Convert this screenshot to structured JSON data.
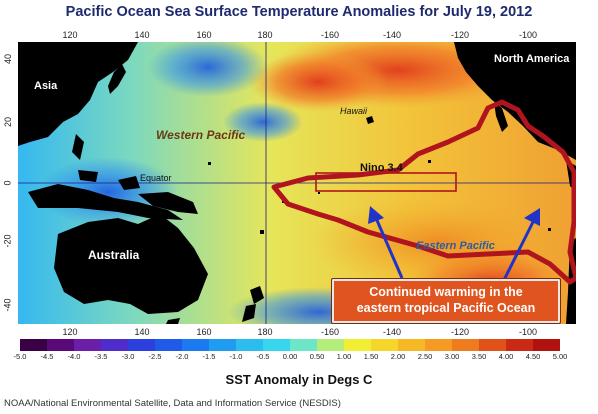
{
  "title": "Pacific Ocean Sea Surface Temperature Anomalies for July 19, 2012",
  "lon_ticks_top": [
    "120",
    "140",
    "160",
    "180",
    "-160",
    "-140",
    "-120",
    "-100"
  ],
  "lon_ticks_bottom": [
    "120",
    "140",
    "160",
    "180",
    "-160",
    "-140",
    "-120",
    "-100"
  ],
  "lat_ticks": [
    "40",
    "20",
    "0",
    "-20",
    "-40"
  ],
  "labels": {
    "asia": "Asia",
    "australia": "Australia",
    "north_america": "North America",
    "western_pacific": "Western Pacific",
    "eastern_pacific": "Eastern Pacific",
    "equator": "Equator",
    "hawaii": "Hawaii",
    "nino": "Nino 3.4"
  },
  "callout": {
    "line1": "Continued warming in the",
    "line2": "eastern tropical Pacific Ocean"
  },
  "colorbar": {
    "title": "SST Anomaly in Degs C",
    "ticks": [
      "-5.0",
      "-4.5",
      "-4.0",
      "-3.5",
      "-3.0",
      "-2.5",
      "-2.0",
      "-1.5",
      "-1.0",
      "-0.5",
      "0.00",
      "0.50",
      "1.00",
      "1.50",
      "2.00",
      "2.50",
      "3.00",
      "3.50",
      "4.00",
      "4.50",
      "5.00"
    ],
    "colors": [
      "#3a0046",
      "#5a0a78",
      "#6b1fa8",
      "#4f2ccc",
      "#2e3fe0",
      "#1f5ae8",
      "#1c7af0",
      "#1f9cf0",
      "#2bbcf0",
      "#38d6ee",
      "#6de6c8",
      "#b4ee7a",
      "#f2ee34",
      "#f6d62a",
      "#f7b826",
      "#f59a22",
      "#f07a1e",
      "#e0521a",
      "#cc2816",
      "#b0120f"
    ]
  },
  "source": "NOAA/National Environmental Satellite, Data and Information Service (NESDIS)",
  "colors": {
    "title": "#1e2a6e",
    "land": "#000000",
    "outline": "#b0141e",
    "arrow": "#2233c8",
    "callout_fill": "#e0541f",
    "nino_box": "#b0141e"
  }
}
